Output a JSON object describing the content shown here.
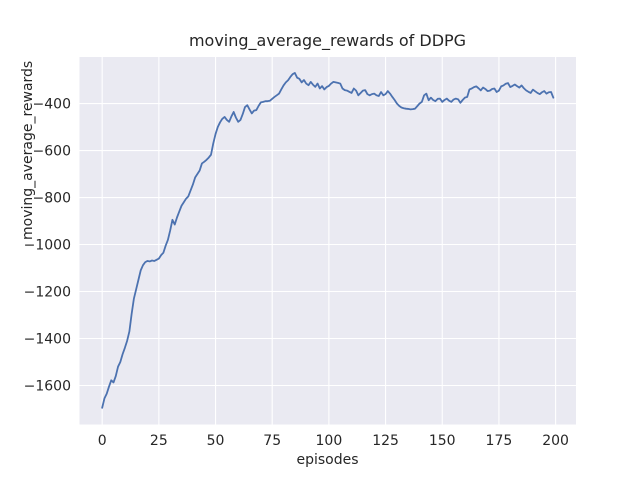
{
  "chart_data": {
    "type": "line",
    "title": "moving_average_rewards of DDPG",
    "xlabel": "episodes",
    "ylabel": "moving_average_rewards",
    "x_ticks": [
      0,
      25,
      50,
      75,
      100,
      125,
      150,
      175,
      200
    ],
    "y_ticks": [
      -400,
      -600,
      -800,
      -1000,
      -1200,
      -1400,
      -1600
    ],
    "xlim": [
      -10,
      209
    ],
    "ylim": [
      -1766,
      -202
    ],
    "grid": true,
    "legend": "none",
    "colors": {
      "line": "#4C72B0",
      "plot_background": "#EAEAF2",
      "figure_background": "#FFFFFF",
      "gridline": "#FFFFFF",
      "text": "#262626"
    },
    "series": [
      {
        "name": "moving_average_rewards",
        "x_start": 0,
        "x_step": 1,
        "values": [
          -1695,
          -1655,
          -1635,
          -1605,
          -1578,
          -1587,
          -1560,
          -1520,
          -1500,
          -1467,
          -1440,
          -1410,
          -1370,
          -1295,
          -1230,
          -1190,
          -1150,
          -1110,
          -1088,
          -1075,
          -1070,
          -1072,
          -1068,
          -1070,
          -1065,
          -1060,
          -1045,
          -1035,
          -1005,
          -980,
          -940,
          -895,
          -915,
          -885,
          -860,
          -835,
          -820,
          -805,
          -795,
          -770,
          -745,
          -715,
          -700,
          -685,
          -655,
          -648,
          -640,
          -630,
          -618,
          -570,
          -530,
          -500,
          -480,
          -465,
          -457,
          -470,
          -478,
          -455,
          -436,
          -460,
          -478,
          -470,
          -445,
          -415,
          -407,
          -425,
          -442,
          -430,
          -428,
          -410,
          -395,
          -393,
          -390,
          -390,
          -388,
          -380,
          -372,
          -365,
          -358,
          -340,
          -323,
          -310,
          -301,
          -287,
          -275,
          -270,
          -290,
          -295,
          -310,
          -300,
          -315,
          -322,
          -308,
          -320,
          -329,
          -315,
          -336,
          -326,
          -340,
          -330,
          -325,
          -315,
          -308,
          -310,
          -312,
          -315,
          -336,
          -343,
          -345,
          -350,
          -355,
          -336,
          -345,
          -365,
          -355,
          -345,
          -343,
          -360,
          -365,
          -360,
          -358,
          -365,
          -368,
          -351,
          -365,
          -360,
          -347,
          -358,
          -372,
          -385,
          -400,
          -410,
          -417,
          -420,
          -422,
          -423,
          -425,
          -424,
          -422,
          -411,
          -400,
          -393,
          -365,
          -358,
          -386,
          -375,
          -385,
          -390,
          -380,
          -379,
          -393,
          -385,
          -379,
          -388,
          -393,
          -383,
          -379,
          -382,
          -397,
          -385,
          -375,
          -372,
          -340,
          -336,
          -330,
          -327,
          -335,
          -344,
          -332,
          -338,
          -347,
          -345,
          -338,
          -336,
          -351,
          -345,
          -327,
          -323,
          -316,
          -313,
          -330,
          -325,
          -319,
          -326,
          -332,
          -323,
          -335,
          -344,
          -350,
          -355,
          -341,
          -348,
          -355,
          -360,
          -352,
          -347,
          -358,
          -352,
          -351,
          -375
        ]
      }
    ]
  }
}
